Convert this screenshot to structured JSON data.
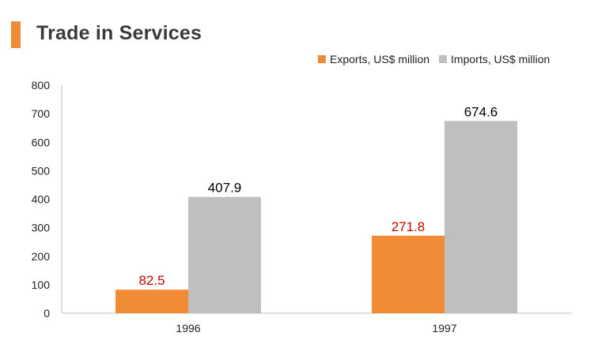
{
  "title": "Trade in Services",
  "colors": {
    "accent": "#f28b36",
    "exports": "#f28b36",
    "imports": "#bfbfbf",
    "exports_label": "#cc0000",
    "imports_label": "#000000",
    "axis": "#bfbfbf",
    "tick_text": "#222222"
  },
  "chart_data": {
    "type": "bar",
    "title": "Trade in Services",
    "categories": [
      "1996",
      "1997"
    ],
    "series": [
      {
        "name": "Exports, US$ million",
        "values": [
          82.5,
          271.8
        ],
        "labels": [
          "82.5",
          "271.8"
        ]
      },
      {
        "name": "Imports, US$ million",
        "values": [
          407.9,
          674.6
        ],
        "labels": [
          "407.9",
          "674.6"
        ]
      }
    ],
    "ylim": [
      0,
      800
    ],
    "yticks": [
      "0",
      "100",
      "200",
      "300",
      "400",
      "500",
      "600",
      "700",
      "800"
    ],
    "xlabel": "",
    "ylabel": "",
    "grid": false,
    "legend_position": "top-right"
  }
}
